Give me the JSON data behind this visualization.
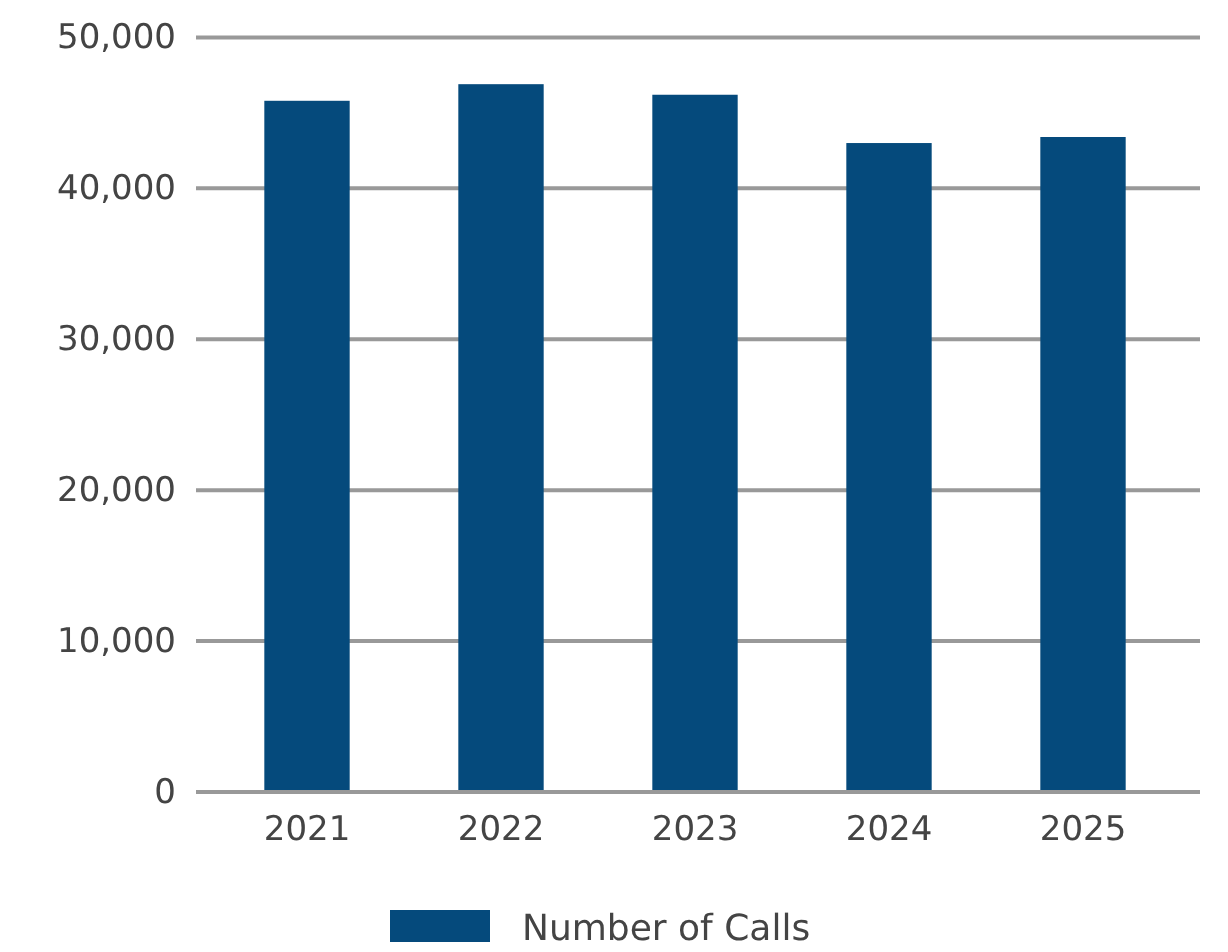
{
  "chart_data": {
    "type": "bar",
    "categories": [
      "2021",
      "2022",
      "2023",
      "2024",
      "2025"
    ],
    "series": [
      {
        "name": "Number of Calls",
        "color": "#054a7c",
        "values": [
          45800,
          46900,
          46200,
          43000,
          43400
        ]
      }
    ],
    "ylim": [
      0,
      50000
    ],
    "yticks": [
      {
        "value": 0,
        "label": "0"
      },
      {
        "value": 10000,
        "label": "10,000"
      },
      {
        "value": 20000,
        "label": "20,000"
      },
      {
        "value": 30000,
        "label": "30,000"
      },
      {
        "value": 40000,
        "label": "40,000"
      },
      {
        "value": 50000,
        "label": "50,000"
      }
    ],
    "grid": "y",
    "legend": "bottom"
  }
}
